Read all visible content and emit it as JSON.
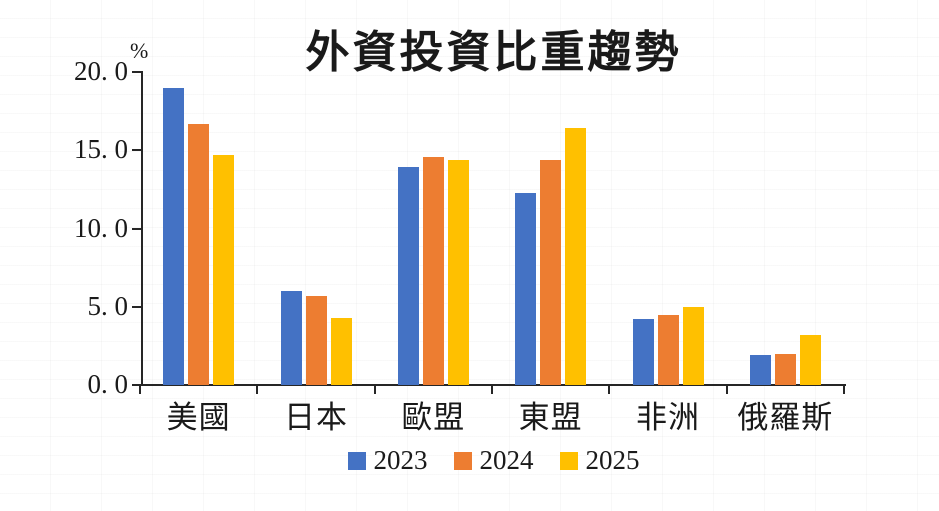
{
  "chart_data": {
    "type": "bar",
    "title": "外資投資比重趨勢",
    "unit_label": "%",
    "categories": [
      "美國",
      "日本",
      "歐盟",
      "東盟",
      "非洲",
      "俄羅斯"
    ],
    "series": [
      {
        "name": "2023",
        "color": "#4472C4",
        "values": [
          19.0,
          6.0,
          13.9,
          12.3,
          4.2,
          1.9
        ]
      },
      {
        "name": "2024",
        "color": "#ED7D31",
        "values": [
          16.7,
          5.7,
          14.6,
          14.4,
          4.5,
          2.0
        ]
      },
      {
        "name": "2025",
        "color": "#FFC000",
        "values": [
          14.7,
          4.3,
          14.4,
          16.4,
          5.0,
          3.2
        ]
      }
    ],
    "ylim": [
      0,
      20
    ],
    "ytick_values": [
      20,
      15,
      10,
      5,
      0
    ],
    "ytick_labels": [
      "20. 0",
      "15. 0",
      "10. 0",
      "5. 0",
      "0. 0"
    ],
    "grid": false,
    "legend_position": "bottom",
    "axis_color": "#262626"
  }
}
